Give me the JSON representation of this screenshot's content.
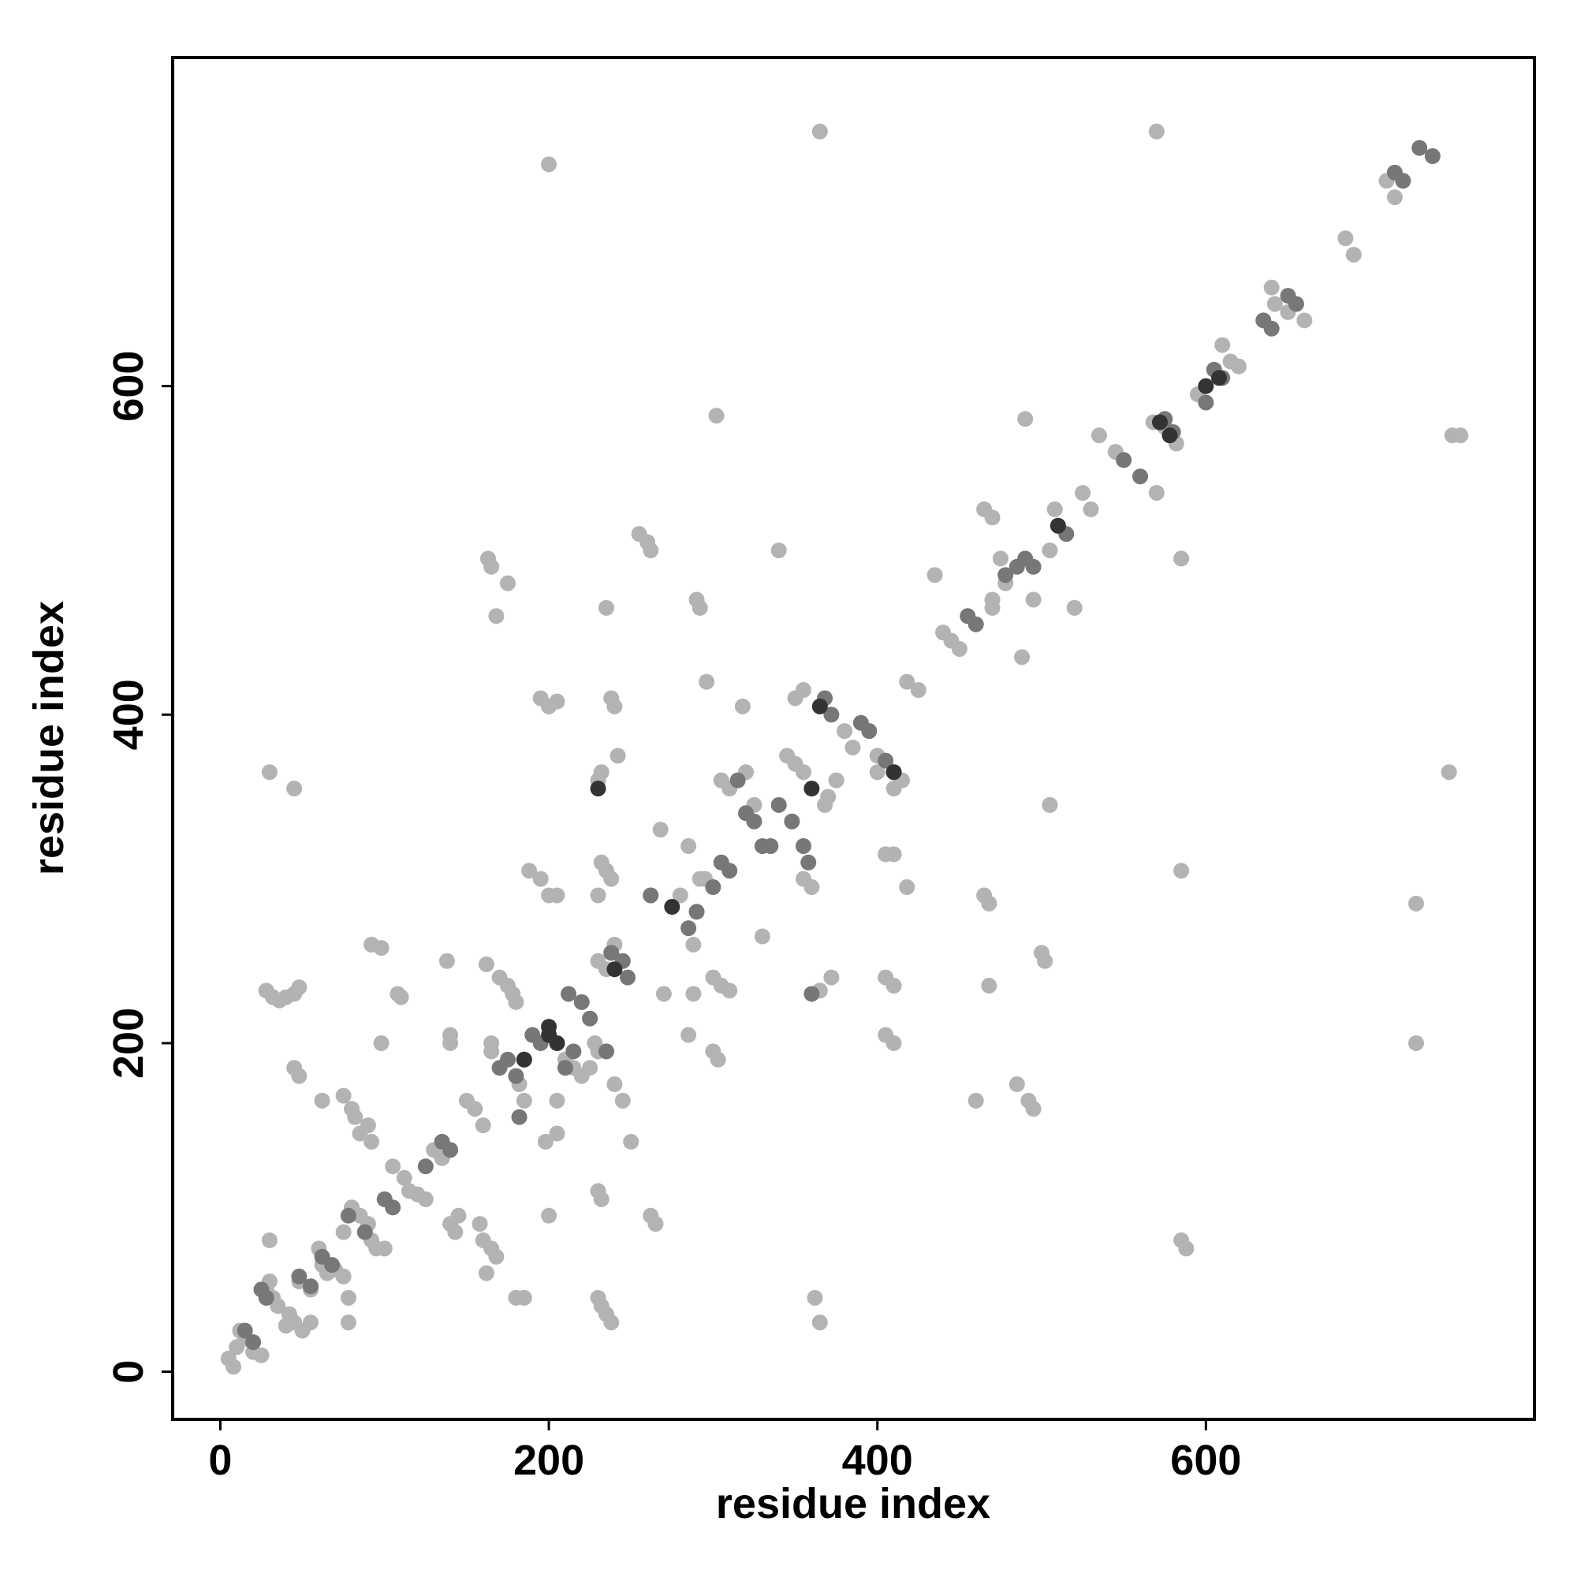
{
  "chart_data": {
    "type": "scatter",
    "xlabel": "residue index",
    "ylabel": "residue index",
    "xlim": [
      -29,
      800
    ],
    "ylim": [
      -29,
      800
    ],
    "xticks": [
      0,
      200,
      400,
      600
    ],
    "yticks": [
      0,
      200,
      400,
      600
    ],
    "series": [
      {
        "color": "#b3b3b3",
        "x": [
          5,
          8,
          10,
          12,
          15,
          20,
          25,
          28,
          30,
          30,
          32,
          35,
          40,
          42,
          45,
          48,
          50,
          55,
          55,
          60,
          62,
          65,
          70,
          75,
          78,
          78,
          80,
          85,
          90,
          92,
          95,
          75,
          28,
          32,
          36,
          40,
          45,
          48,
          30,
          45,
          45,
          48,
          62,
          75,
          80,
          82,
          85,
          90,
          92,
          92,
          98,
          98,
          100,
          105,
          108,
          110,
          112,
          115,
          120,
          125,
          130,
          135,
          138,
          140,
          140,
          140,
          143,
          145,
          150,
          155,
          160,
          158,
          160,
          165,
          168,
          162,
          162,
          165,
          165,
          163,
          165,
          168,
          175,
          170,
          175,
          180,
          185,
          178,
          180,
          182,
          185,
          188,
          195,
          195,
          200,
          205,
          200,
          205,
          198,
          205,
          200,
          200,
          205,
          210,
          215,
          220,
          225,
          228,
          230,
          230,
          232,
          230,
          232,
          235,
          238,
          230,
          235,
          240,
          230,
          232,
          230,
          232,
          235,
          238,
          235,
          238,
          240,
          242,
          240,
          245,
          250,
          255,
          260,
          262,
          262,
          265,
          262,
          268,
          270,
          280,
          285,
          285,
          288,
          288,
          290,
          292,
          292,
          295,
          296,
          300,
          303,
          300,
          305,
          310,
          302,
          305,
          310,
          318,
          320,
          325,
          330,
          340,
          345,
          350,
          355,
          350,
          355,
          355,
          360,
          362,
          365,
          365,
          365,
          368,
          370,
          375,
          372,
          380,
          385,
          400,
          400,
          405,
          410,
          405,
          410,
          405,
          410,
          410,
          415,
          418,
          418,
          425,
          435,
          440,
          445,
          450,
          460,
          465,
          468,
          465,
          470,
          468,
          470,
          470,
          475,
          478,
          485,
          488,
          490,
          492,
          495,
          495,
          500,
          502,
          505,
          505,
          508,
          520,
          525,
          530,
          535,
          545,
          550,
          570,
          570,
          568,
          575,
          582,
          585,
          585,
          588,
          585,
          595,
          610,
          615,
          620,
          640,
          642,
          650,
          660,
          685,
          690,
          710,
          715,
          728,
          728,
          748,
          750,
          755
        ],
        "y": [
          8,
          3,
          15,
          25,
          20,
          12,
          10,
          50,
          55,
          80,
          45,
          40,
          28,
          35,
          30,
          55,
          25,
          50,
          30,
          75,
          65,
          60,
          62,
          58,
          45,
          30,
          100,
          95,
          90,
          80,
          75,
          85,
          232,
          228,
          226,
          228,
          230,
          234,
          365,
          355,
          185,
          180,
          165,
          168,
          160,
          155,
          145,
          150,
          140,
          260,
          258,
          200,
          75,
          125,
          230,
          228,
          118,
          110,
          108,
          105,
          135,
          130,
          250,
          200,
          205,
          90,
          85,
          95,
          165,
          160,
          150,
          90,
          80,
          75,
          70,
          60,
          248,
          200,
          195,
          495,
          490,
          460,
          480,
          240,
          235,
          45,
          45,
          230,
          225,
          175,
          165,
          305,
          300,
          410,
          405,
          408,
          290,
          290,
          140,
          145,
          95,
          735,
          165,
          190,
          185,
          180,
          185,
          200,
          195,
          360,
          365,
          290,
          310,
          305,
          300,
          250,
          245,
          260,
          110,
          105,
          45,
          40,
          35,
          30,
          465,
          410,
          405,
          375,
          175,
          165,
          140,
          510,
          505,
          500,
          95,
          90,
          290,
          330,
          230,
          290,
          205,
          320,
          260,
          230,
          470,
          465,
          300,
          300,
          420,
          195,
          190,
          240,
          235,
          232,
          582,
          360,
          355,
          405,
          365,
          345,
          265,
          500,
          375,
          370,
          365,
          410,
          415,
          300,
          295,
          45,
          30,
          232,
          755,
          345,
          350,
          360,
          240,
          390,
          380,
          375,
          365,
          205,
          200,
          240,
          235,
          315,
          315,
          355,
          360,
          295,
          420,
          415,
          485,
          450,
          445,
          440,
          165,
          290,
          285,
          525,
          520,
          235,
          470,
          465,
          495,
          480,
          175,
          435,
          580,
          165,
          160,
          470,
          255,
          250,
          345,
          500,
          525,
          465,
          535,
          525,
          570,
          560,
          555,
          755,
          535,
          578,
          575,
          565,
          495,
          80,
          75,
          305,
          595,
          625,
          615,
          612,
          660,
          650,
          645,
          640,
          690,
          680,
          725,
          715,
          285,
          200,
          365,
          570,
          570
        ]
      },
      {
        "color": "#777777",
        "x": [
          15,
          20,
          25,
          28,
          48,
          55,
          62,
          68,
          78,
          88,
          100,
          105,
          125,
          135,
          140,
          170,
          175,
          180,
          182,
          185,
          190,
          195,
          210,
          212,
          215,
          220,
          225,
          235,
          238,
          245,
          248,
          262,
          285,
          290,
          300,
          305,
          310,
          315,
          320,
          325,
          330,
          335,
          340,
          348,
          355,
          358,
          360,
          368,
          372,
          390,
          395,
          405,
          410,
          455,
          460,
          478,
          485,
          490,
          495,
          510,
          515,
          550,
          560,
          575,
          580,
          600,
          605,
          610,
          635,
          640,
          650,
          655,
          715,
          720,
          730,
          738
        ],
        "y": [
          25,
          18,
          50,
          45,
          58,
          52,
          70,
          65,
          95,
          85,
          105,
          100,
          125,
          140,
          135,
          185,
          190,
          180,
          155,
          190,
          205,
          200,
          185,
          230,
          195,
          225,
          215,
          195,
          255,
          250,
          240,
          290,
          270,
          280,
          295,
          310,
          305,
          360,
          340,
          335,
          320,
          320,
          345,
          335,
          320,
          310,
          230,
          410,
          400,
          395,
          390,
          372,
          365,
          460,
          455,
          485,
          490,
          495,
          490,
          515,
          510,
          555,
          545,
          580,
          572,
          590,
          610,
          605,
          640,
          635,
          655,
          650,
          730,
          725,
          745,
          740
        ]
      },
      {
        "color": "#333333",
        "x": [
          200,
          205,
          230,
          240,
          275,
          360,
          365,
          410,
          510,
          572,
          578,
          600,
          608,
          185,
          200
        ],
        "y": [
          205,
          200,
          355,
          245,
          283,
          355,
          405,
          365,
          515,
          578,
          570,
          600,
          605,
          190,
          210
        ]
      }
    ]
  }
}
